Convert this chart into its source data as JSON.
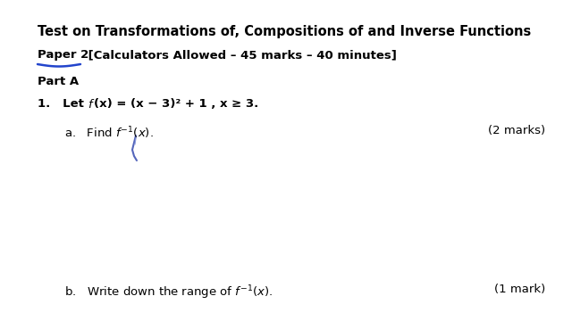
{
  "bg_color": "#ffffff",
  "title": "Test on Transformations of, Compositions of and Inverse Functions",
  "paper_label": "Paper 2",
  "paper_rest": " [Calculators Allowed – 45 marks – 40 minutes]",
  "part_a": "Part A",
  "q1_pre": "1.   Let ",
  "q1_mid": "f",
  "q1_post": "(x) = (x − 3)² + 1 , x ≥ 3.",
  "qa_a": "a.   Find ",
  "qa_finv": "f",
  "qa_end": "⁻¹(x).",
  "qa_marks": "(2 marks)",
  "qb_label": "b.   Write down the range of ",
  "qb_finv": "f",
  "qb_end": "⁻¹(x).",
  "qb_marks": "(1 mark)",
  "title_fontsize": 10.5,
  "body_fontsize": 9.5,
  "small_fontsize": 9.0,
  "text_color": "#000000",
  "underline_color": "#2244cc",
  "pen_color": "#5566bb"
}
